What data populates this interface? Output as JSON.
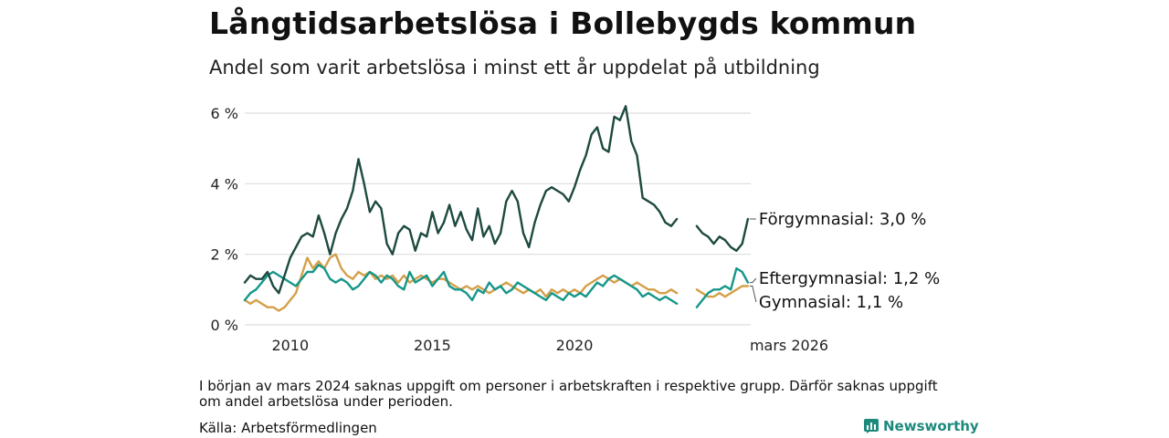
{
  "title": "Långtidsarbetslösa i Bollebygds kommun",
  "subtitle": "Andel som varit arbetslösa i minst ett år uppdelat på utbildning",
  "note": "I början av mars 2024 saknas uppgift om personer i arbetskraften i respektive grupp. Därför saknas uppgift om andel arbetslösa under perioden.",
  "source": "Källa: Arbetsförmedlingen",
  "brand": "Newsworthy",
  "colors": {
    "forgymnasial": "#1d4a40",
    "eftergymnasial": "#16968a",
    "gymnasial": "#d4a04a",
    "grid": "#dddddd",
    "brand": "#1e8a7e"
  },
  "chart_data": {
    "type": "line",
    "x_unit": "year",
    "xlim": [
      2008.4,
      2026.2
    ],
    "ylim": [
      0,
      6
    ],
    "yticks": [
      0,
      2,
      4,
      6
    ],
    "ytick_labels": [
      "0 %",
      "2 %",
      "4 %",
      "6 %"
    ],
    "xticks": [
      2010,
      2015,
      2020,
      2026.2
    ],
    "xtick_labels": [
      "2010",
      "2015",
      "2020",
      "mars 2026"
    ],
    "gap": [
      2023.7,
      2024.25
    ],
    "series": [
      {
        "name": "Förgymnasial",
        "label": "Förgymnasial: 3,0 %",
        "color_key": "forgymnasial",
        "x": [
          2008.4,
          2008.6,
          2008.8,
          2009.0,
          2009.2,
          2009.4,
          2009.6,
          2009.8,
          2010.0,
          2010.2,
          2010.4,
          2010.6,
          2010.8,
          2011.0,
          2011.2,
          2011.4,
          2011.6,
          2011.8,
          2012.0,
          2012.2,
          2012.4,
          2012.6,
          2012.8,
          2013.0,
          2013.2,
          2013.4,
          2013.6,
          2013.8,
          2014.0,
          2014.2,
          2014.4,
          2014.6,
          2014.8,
          2015.0,
          2015.2,
          2015.4,
          2015.6,
          2015.8,
          2016.0,
          2016.2,
          2016.4,
          2016.6,
          2016.8,
          2017.0,
          2017.2,
          2017.4,
          2017.6,
          2017.8,
          2018.0,
          2018.2,
          2018.4,
          2018.6,
          2018.8,
          2019.0,
          2019.2,
          2019.4,
          2019.6,
          2019.8,
          2020.0,
          2020.2,
          2020.4,
          2020.6,
          2020.8,
          2021.0,
          2021.2,
          2021.4,
          2021.6,
          2021.8,
          2022.0,
          2022.2,
          2022.4,
          2022.6,
          2022.8,
          2023.0,
          2023.2,
          2023.4,
          2023.6,
          2024.3,
          2024.5,
          2024.7,
          2024.9,
          2025.1,
          2025.3,
          2025.5,
          2025.7,
          2025.9,
          2026.1
        ],
        "y": [
          1.2,
          1.4,
          1.3,
          1.3,
          1.5,
          1.1,
          0.9,
          1.4,
          1.9,
          2.2,
          2.5,
          2.6,
          2.5,
          3.1,
          2.6,
          2.0,
          2.6,
          3.0,
          3.3,
          3.8,
          4.7,
          4.0,
          3.2,
          3.5,
          3.3,
          2.3,
          2.0,
          2.6,
          2.8,
          2.7,
          2.1,
          2.6,
          2.5,
          3.2,
          2.6,
          2.9,
          3.4,
          2.8,
          3.2,
          2.7,
          2.4,
          3.3,
          2.5,
          2.8,
          2.3,
          2.6,
          3.5,
          3.8,
          3.5,
          2.6,
          2.2,
          2.9,
          3.4,
          3.8,
          3.9,
          3.8,
          3.7,
          3.5,
          3.9,
          4.4,
          4.8,
          5.4,
          5.6,
          5.0,
          4.9,
          5.9,
          5.8,
          6.2,
          5.2,
          4.8,
          3.6,
          3.5,
          3.4,
          3.2,
          2.9,
          2.8,
          3.0,
          2.8,
          2.6,
          2.5,
          2.3,
          2.5,
          2.4,
          2.2,
          2.1,
          2.3,
          3.0
        ]
      },
      {
        "name": "Eftergymnasial",
        "label": "Eftergymnasial: 1,2 %",
        "color_key": "eftergymnasial",
        "x": [
          2008.4,
          2008.6,
          2008.8,
          2009.0,
          2009.2,
          2009.4,
          2009.6,
          2009.8,
          2010.0,
          2010.2,
          2010.4,
          2010.6,
          2010.8,
          2011.0,
          2011.2,
          2011.4,
          2011.6,
          2011.8,
          2012.0,
          2012.2,
          2012.4,
          2012.6,
          2012.8,
          2013.0,
          2013.2,
          2013.4,
          2013.6,
          2013.8,
          2014.0,
          2014.2,
          2014.4,
          2014.6,
          2014.8,
          2015.0,
          2015.2,
          2015.4,
          2015.6,
          2015.8,
          2016.0,
          2016.2,
          2016.4,
          2016.6,
          2016.8,
          2017.0,
          2017.2,
          2017.4,
          2017.6,
          2017.8,
          2018.0,
          2018.2,
          2018.4,
          2018.6,
          2018.8,
          2019.0,
          2019.2,
          2019.4,
          2019.6,
          2019.8,
          2020.0,
          2020.2,
          2020.4,
          2020.6,
          2020.8,
          2021.0,
          2021.2,
          2021.4,
          2021.6,
          2021.8,
          2022.0,
          2022.2,
          2022.4,
          2022.6,
          2022.8,
          2023.0,
          2023.2,
          2023.4,
          2023.6,
          2024.3,
          2024.5,
          2024.7,
          2024.9,
          2025.1,
          2025.3,
          2025.5,
          2025.7,
          2025.9,
          2026.1
        ],
        "y": [
          0.7,
          0.9,
          1.0,
          1.2,
          1.4,
          1.5,
          1.4,
          1.3,
          1.2,
          1.1,
          1.3,
          1.5,
          1.5,
          1.7,
          1.6,
          1.3,
          1.2,
          1.3,
          1.2,
          1.0,
          1.1,
          1.3,
          1.5,
          1.4,
          1.2,
          1.4,
          1.3,
          1.1,
          1.0,
          1.5,
          1.2,
          1.3,
          1.4,
          1.1,
          1.3,
          1.5,
          1.1,
          1.0,
          1.0,
          0.9,
          0.7,
          1.0,
          0.9,
          1.2,
          1.0,
          1.1,
          0.9,
          1.0,
          1.2,
          1.1,
          1.0,
          0.9,
          0.8,
          0.7,
          0.9,
          0.8,
          0.7,
          0.9,
          0.8,
          0.9,
          0.8,
          1.0,
          1.2,
          1.1,
          1.3,
          1.4,
          1.3,
          1.2,
          1.1,
          1.0,
          0.8,
          0.9,
          0.8,
          0.7,
          0.8,
          0.7,
          0.6,
          0.5,
          0.7,
          0.9,
          1.0,
          1.0,
          1.1,
          1.0,
          1.6,
          1.5,
          1.2
        ]
      },
      {
        "name": "Gymnasial",
        "label": "Gymnasial: 1,1 %",
        "color_key": "gymnasial",
        "x": [
          2008.4,
          2008.6,
          2008.8,
          2009.0,
          2009.2,
          2009.4,
          2009.6,
          2009.8,
          2010.0,
          2010.2,
          2010.4,
          2010.6,
          2010.8,
          2011.0,
          2011.2,
          2011.4,
          2011.6,
          2011.8,
          2012.0,
          2012.2,
          2012.4,
          2012.6,
          2012.8,
          2013.0,
          2013.2,
          2013.4,
          2013.6,
          2013.8,
          2014.0,
          2014.2,
          2014.4,
          2014.6,
          2014.8,
          2015.0,
          2015.2,
          2015.4,
          2015.6,
          2015.8,
          2016.0,
          2016.2,
          2016.4,
          2016.6,
          2016.8,
          2017.0,
          2017.2,
          2017.4,
          2017.6,
          2017.8,
          2018.0,
          2018.2,
          2018.4,
          2018.6,
          2018.8,
          2019.0,
          2019.2,
          2019.4,
          2019.6,
          2019.8,
          2020.0,
          2020.2,
          2020.4,
          2020.6,
          2020.8,
          2021.0,
          2021.2,
          2021.4,
          2021.6,
          2021.8,
          2022.0,
          2022.2,
          2022.4,
          2022.6,
          2022.8,
          2023.0,
          2023.2,
          2023.4,
          2023.6,
          2024.3,
          2024.5,
          2024.7,
          2024.9,
          2025.1,
          2025.3,
          2025.5,
          2025.7,
          2025.9,
          2026.1
        ],
        "y": [
          0.7,
          0.6,
          0.7,
          0.6,
          0.5,
          0.5,
          0.4,
          0.5,
          0.7,
          0.9,
          1.4,
          1.9,
          1.6,
          1.8,
          1.6,
          1.9,
          2.0,
          1.6,
          1.4,
          1.3,
          1.5,
          1.4,
          1.5,
          1.3,
          1.4,
          1.3,
          1.4,
          1.2,
          1.4,
          1.2,
          1.3,
          1.4,
          1.3,
          1.2,
          1.3,
          1.3,
          1.2,
          1.1,
          1.0,
          1.1,
          1.0,
          1.1,
          1.0,
          0.9,
          1.0,
          1.1,
          1.2,
          1.1,
          1.0,
          0.9,
          1.0,
          0.9,
          1.0,
          0.8,
          1.0,
          0.9,
          1.0,
          0.9,
          1.0,
          0.9,
          1.1,
          1.2,
          1.3,
          1.4,
          1.3,
          1.2,
          1.3,
          1.2,
          1.1,
          1.2,
          1.1,
          1.0,
          1.0,
          0.9,
          0.9,
          1.0,
          0.9,
          1.0,
          0.9,
          0.8,
          0.8,
          0.9,
          0.8,
          0.9,
          1.0,
          1.1,
          1.1
        ]
      }
    ]
  }
}
